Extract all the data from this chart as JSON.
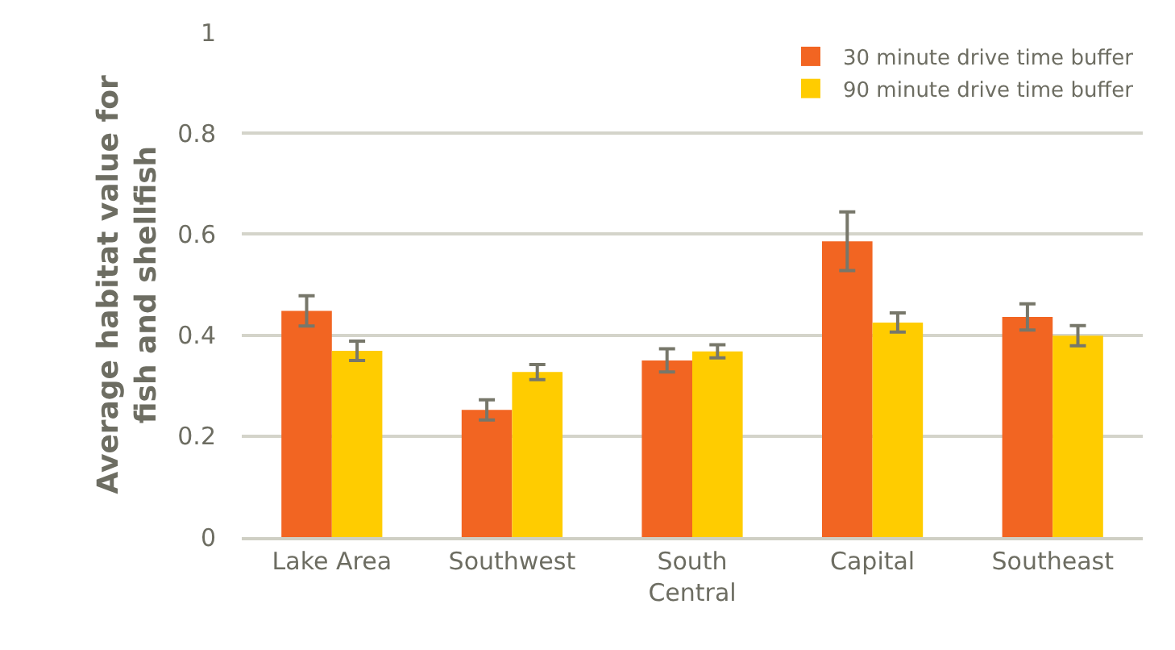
{
  "chart_data": {
    "type": "bar",
    "ylabel": "Average habitat value for fish and shellfish",
    "categories": [
      "Lake Area",
      "Southwest",
      "South Central",
      "Capital",
      "Southeast"
    ],
    "series": [
      {
        "name": "30 minute drive time buffer",
        "color": "#f26522",
        "values": [
          0.448,
          0.252,
          0.35,
          0.586,
          0.436
        ],
        "errors": [
          0.03,
          0.02,
          0.023,
          0.058,
          0.026
        ]
      },
      {
        "name": "90 minute drive time buffer",
        "color": "#ffcc00",
        "values": [
          0.369,
          0.327,
          0.368,
          0.425,
          0.399
        ],
        "errors": [
          0.019,
          0.015,
          0.013,
          0.019,
          0.02
        ]
      }
    ],
    "ylim": [
      0,
      1
    ],
    "yticks": [
      0,
      0.2,
      0.4,
      0.6,
      0.8,
      1
    ],
    "grid": "y",
    "legend": "top right"
  }
}
